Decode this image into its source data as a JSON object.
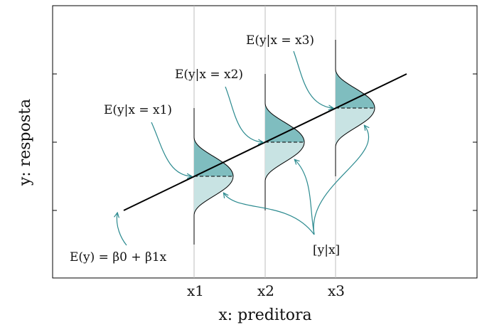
{
  "axes": {
    "xlabel": "x: preditora",
    "ylabel": "y: resposta",
    "xticks": [
      "x1",
      "x2",
      "x3"
    ]
  },
  "annotations": {
    "e1": "E(y|x = x1)",
    "e2": "E(y|x = x2)",
    "e3": "E(y|x = x3)",
    "line": "E(y) = β0 + β1x",
    "cond": "[y|x]"
  },
  "colors": {
    "fill_upper": "#7fbdbf",
    "fill_lower": "#c8e3e3",
    "arrow": "#2b8a8f",
    "line": "#000000",
    "gridline": "#bdbdbd"
  }
}
